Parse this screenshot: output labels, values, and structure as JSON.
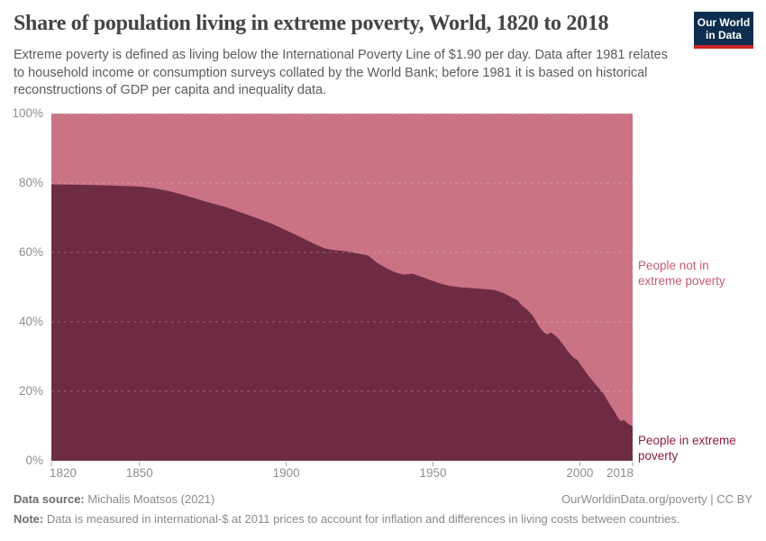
{
  "header": {
    "title": "Share of population living in extreme poverty, World, 1820 to 2018",
    "subtitle": "Extreme poverty is defined as living below the International Poverty Line of $1.90 per day. Data after 1981 relates to household income or consumption surveys collated by the World Bank; before 1981 it is based on historical reconstructions of GDP per capita and inequality data.",
    "logo": {
      "line1": "Our World",
      "line2": "in Data",
      "bg_color": "#0d2e4e",
      "stripe_color": "#cf2424"
    }
  },
  "chart_data": {
    "type": "area",
    "stacked": true,
    "title": "Share of population living in extreme poverty, World, 1820 to 2018",
    "xlabel": "",
    "ylabel": "",
    "xlim": [
      1820,
      2018
    ],
    "ylim": [
      0,
      100
    ],
    "grid": true,
    "legend_position": "right-annotations",
    "x": [
      1820,
      1830,
      1840,
      1850,
      1855,
      1860,
      1865,
      1870,
      1875,
      1880,
      1885,
      1890,
      1895,
      1900,
      1905,
      1910,
      1913,
      1916,
      1920,
      1924,
      1928,
      1931,
      1934,
      1937,
      1940,
      1943,
      1947,
      1950,
      1953,
      1956,
      1959,
      1962,
      1965,
      1968,
      1971,
      1974,
      1977,
      1979,
      1980,
      1981,
      1982,
      1983,
      1984,
      1985,
      1986,
      1987,
      1988,
      1989,
      1990,
      1991,
      1992,
      1993,
      1994,
      1995,
      1996,
      1997,
      1998,
      1999,
      2000,
      2001,
      2002,
      2003,
      2004,
      2005,
      2006,
      2007,
      2008,
      2009,
      2010,
      2011,
      2012,
      2013,
      2014,
      2015,
      2016,
      2017,
      2018
    ],
    "series": [
      {
        "name": "People in extreme poverty",
        "color": "#6e2c44",
        "label_color": "#8a1f40",
        "values": [
          79.6,
          79.5,
          79.3,
          79.0,
          78.5,
          77.7,
          76.6,
          75.3,
          74.1,
          72.9,
          71.4,
          69.9,
          68.3,
          66.4,
          64.4,
          62.3,
          61.2,
          60.7,
          60.4,
          59.8,
          59.1,
          57.0,
          55.5,
          54.3,
          53.6,
          53.9,
          52.7,
          51.8,
          50.9,
          50.3,
          50.0,
          49.8,
          49.6,
          49.4,
          49.2,
          48.3,
          47.0,
          46.1,
          44.9,
          44.2,
          43.6,
          42.7,
          41.8,
          40.3,
          38.8,
          37.7,
          36.8,
          36.4,
          37.0,
          36.5,
          35.8,
          34.9,
          33.8,
          32.7,
          31.5,
          30.5,
          29.6,
          29.2,
          28.0,
          26.8,
          25.6,
          24.5,
          23.4,
          22.4,
          21.4,
          20.4,
          19.4,
          18.0,
          16.6,
          15.2,
          13.9,
          12.4,
          11.4,
          11.8,
          11.0,
          10.4,
          9.9
        ]
      },
      {
        "name": "People not in extreme poverty",
        "color": "#ca7384",
        "label_color": "#c45c72",
        "values": [
          20.4,
          20.5,
          20.7,
          21.0,
          21.5,
          22.3,
          23.4,
          24.7,
          25.9,
          27.1,
          28.6,
          30.1,
          31.7,
          33.6,
          35.6,
          37.7,
          38.8,
          39.3,
          39.6,
          40.2,
          40.9,
          43.0,
          44.5,
          45.7,
          46.4,
          46.1,
          47.3,
          48.2,
          49.1,
          49.7,
          50.0,
          50.2,
          50.4,
          50.6,
          50.8,
          51.7,
          53.0,
          53.9,
          55.1,
          55.8,
          56.4,
          57.3,
          58.2,
          59.7,
          61.2,
          62.3,
          63.2,
          63.6,
          63.0,
          63.5,
          64.2,
          65.1,
          66.2,
          67.3,
          68.5,
          69.5,
          70.4,
          70.8,
          72.0,
          73.2,
          74.4,
          75.5,
          76.6,
          77.6,
          78.6,
          79.6,
          80.6,
          82.0,
          83.4,
          84.8,
          86.1,
          87.6,
          88.6,
          88.2,
          89.0,
          89.6,
          90.1
        ]
      }
    ],
    "y_ticks": {
      "values": [
        0,
        20,
        40,
        60,
        80,
        100
      ],
      "labels": [
        "0%",
        "20%",
        "40%",
        "60%",
        "80%",
        "100%"
      ]
    },
    "x_ticks": {
      "values": [
        1820,
        1850,
        1900,
        1950,
        2000,
        2018
      ],
      "labels": [
        "1820",
        "1850",
        "1900",
        "1950",
        "2000",
        "2018"
      ]
    },
    "gridline_color_over_area": "rgba(255,255,255,0.28)",
    "gridline_color_top": "#cccccc"
  },
  "footer": {
    "data_source_label": "Data source:",
    "data_source_value": " Michalis Moatsos (2021)",
    "license": "OurWorldinData.org/poverty | CC BY",
    "note_label": "Note:",
    "note_value": " Data is measured in international-$ at 2011 prices to account for inflation and differences in living costs between countries."
  }
}
